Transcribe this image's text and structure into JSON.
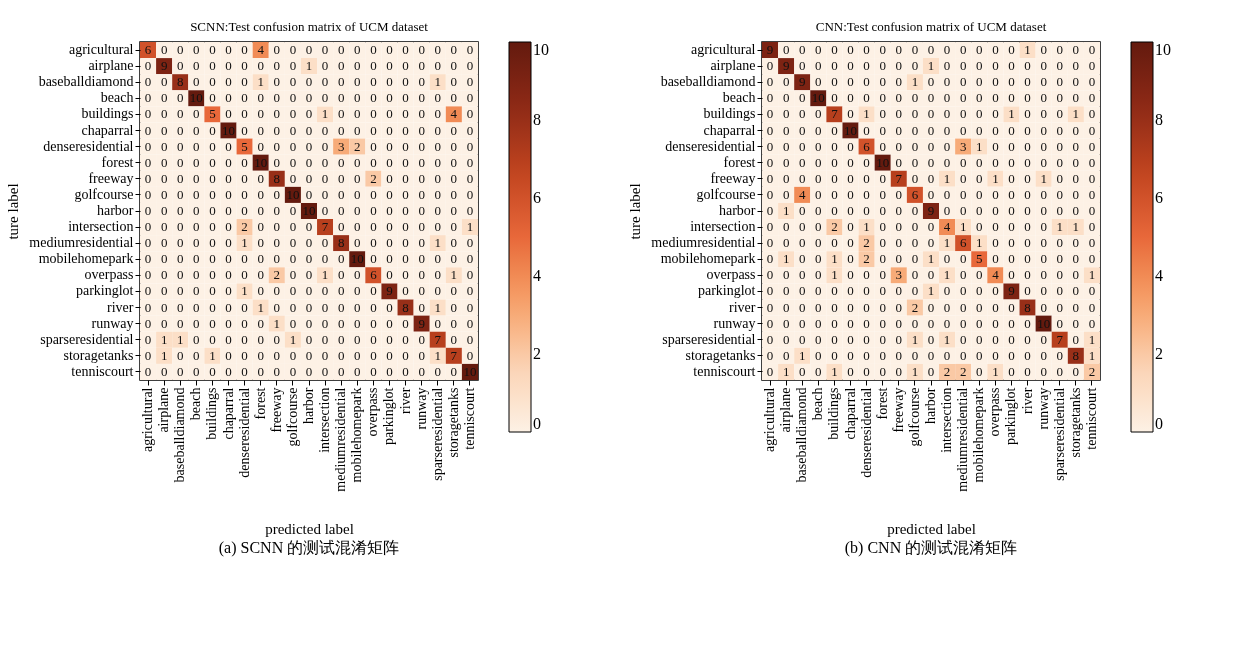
{
  "chart_data": [
    {
      "type": "heatmap",
      "title": "SCNN:Test confusion matrix of UCM dataset",
      "xlabel": "predicted label",
      "ylabel": "ture label",
      "data_labels": true,
      "grid": false,
      "clim": [
        0,
        10
      ],
      "cticks": [
        0,
        2,
        4,
        6,
        8,
        10
      ],
      "annotations": [
        "(a)  SCNN 的测试混淆矩阵"
      ],
      "categories": [
        "agricultural",
        "airplane",
        "baseballdiamond",
        "beach",
        "buildings",
        "chaparral",
        "denseresidential",
        "forest",
        "freeway",
        "golfcourse",
        "harbor",
        "intersection",
        "mediumresidential",
        "mobilehomepark",
        "overpass",
        "parkinglot",
        "river",
        "runway",
        "sparseresidential",
        "storagetanks",
        "tenniscourt"
      ],
      "y_categories": [
        "agricultural",
        "airplane",
        "baseballdiamond",
        "beach",
        "buildings",
        "chaparral",
        "denseresidential",
        "forest",
        "freeway",
        "golfcourse",
        "harbor",
        "intersection",
        "mediumresidential",
        "mobilehomepark",
        "overpass",
        "parkinglot",
        "river",
        "runway",
        "sparseresidential",
        "storagetanks",
        "tenniscourt"
      ],
      "cells": [
        [
          6,
          0,
          0,
          0,
          0,
          0,
          0,
          4,
          0,
          0,
          0,
          0,
          0,
          0,
          0,
          0,
          0,
          0,
          0,
          0,
          0
        ],
        [
          0,
          9,
          0,
          0,
          0,
          0,
          0,
          0,
          0,
          0,
          1,
          0,
          0,
          0,
          0,
          0,
          0,
          0,
          0,
          0,
          0
        ],
        [
          0,
          0,
          8,
          0,
          0,
          0,
          0,
          1,
          0,
          0,
          0,
          0,
          0,
          0,
          0,
          0,
          0,
          0,
          1,
          0,
          0
        ],
        [
          0,
          0,
          0,
          10,
          0,
          0,
          0,
          0,
          0,
          0,
          0,
          0,
          0,
          0,
          0,
          0,
          0,
          0,
          0,
          0,
          0
        ],
        [
          0,
          0,
          0,
          0,
          5,
          0,
          0,
          0,
          0,
          0,
          0,
          1,
          0,
          0,
          0,
          0,
          0,
          0,
          0,
          4,
          0
        ],
        [
          0,
          0,
          0,
          0,
          0,
          10,
          0,
          0,
          0,
          0,
          0,
          0,
          0,
          0,
          0,
          0,
          0,
          0,
          0,
          0,
          0
        ],
        [
          0,
          0,
          0,
          0,
          0,
          0,
          5,
          0,
          0,
          0,
          0,
          0,
          3,
          2,
          0,
          0,
          0,
          0,
          0,
          0,
          0
        ],
        [
          0,
          0,
          0,
          0,
          0,
          0,
          0,
          10,
          0,
          0,
          0,
          0,
          0,
          0,
          0,
          0,
          0,
          0,
          0,
          0,
          0
        ],
        [
          0,
          0,
          0,
          0,
          0,
          0,
          0,
          0,
          8,
          0,
          0,
          0,
          0,
          0,
          2,
          0,
          0,
          0,
          0,
          0,
          0
        ],
        [
          0,
          0,
          0,
          0,
          0,
          0,
          0,
          0,
          0,
          10,
          0,
          0,
          0,
          0,
          0,
          0,
          0,
          0,
          0,
          0,
          0
        ],
        [
          0,
          0,
          0,
          0,
          0,
          0,
          0,
          0,
          0,
          0,
          10,
          0,
          0,
          0,
          0,
          0,
          0,
          0,
          0,
          0,
          0
        ],
        [
          0,
          0,
          0,
          0,
          0,
          0,
          2,
          0,
          0,
          0,
          0,
          7,
          0,
          0,
          0,
          0,
          0,
          0,
          0,
          0,
          1
        ],
        [
          0,
          0,
          0,
          0,
          0,
          0,
          1,
          0,
          0,
          0,
          0,
          0,
          8,
          0,
          0,
          0,
          0,
          0,
          1,
          0,
          0
        ],
        [
          0,
          0,
          0,
          0,
          0,
          0,
          0,
          0,
          0,
          0,
          0,
          0,
          0,
          10,
          0,
          0,
          0,
          0,
          0,
          0,
          0
        ],
        [
          0,
          0,
          0,
          0,
          0,
          0,
          0,
          0,
          2,
          0,
          0,
          1,
          0,
          0,
          6,
          0,
          0,
          0,
          0,
          1,
          0
        ],
        [
          0,
          0,
          0,
          0,
          0,
          0,
          1,
          0,
          0,
          0,
          0,
          0,
          0,
          0,
          0,
          9,
          0,
          0,
          0,
          0,
          0
        ],
        [
          0,
          0,
          0,
          0,
          0,
          0,
          0,
          1,
          0,
          0,
          0,
          0,
          0,
          0,
          0,
          0,
          8,
          0,
          1,
          0,
          0
        ],
        [
          0,
          0,
          0,
          0,
          0,
          0,
          0,
          0,
          1,
          0,
          0,
          0,
          0,
          0,
          0,
          0,
          0,
          9,
          0,
          0,
          0
        ],
        [
          0,
          1,
          1,
          0,
          0,
          0,
          0,
          0,
          0,
          1,
          0,
          0,
          0,
          0,
          0,
          0,
          0,
          0,
          7,
          0,
          0
        ],
        [
          0,
          1,
          0,
          0,
          1,
          0,
          0,
          0,
          0,
          0,
          0,
          0,
          0,
          0,
          0,
          0,
          0,
          0,
          1,
          7,
          0
        ],
        [
          0,
          0,
          0,
          0,
          0,
          0,
          0,
          0,
          0,
          0,
          0,
          0,
          0,
          0,
          0,
          0,
          0,
          0,
          0,
          0,
          10
        ]
      ]
    },
    {
      "type": "heatmap",
      "title": "CNN:Test confusion matrix of UCM dataset",
      "xlabel": "predicted label",
      "ylabel": "ture label",
      "data_labels": true,
      "grid": false,
      "clim": [
        0,
        10
      ],
      "cticks": [
        0,
        2,
        4,
        6,
        8,
        10
      ],
      "annotations": [
        "(b)  CNN 的测试混淆矩阵"
      ],
      "categories": [
        "agricultural",
        "airplane",
        "baseballdiamond",
        "beach",
        "buildings",
        "chaparral",
        "denseresidential",
        "forest",
        "freeway",
        "golfcourse",
        "harbor",
        "intersection",
        "mediumresidential",
        "mobilehomepark",
        "overpass",
        "parkinglot",
        "river",
        "runway",
        "sparseresidential",
        "storagetanks",
        "tenniscourt"
      ],
      "y_categories": [
        "agricultural",
        "airplane",
        "baseballdiamond",
        "beach",
        "buildings",
        "chaparral",
        "denseresidential",
        "forest",
        "freeway",
        "golfcourse",
        "harbor",
        "intersection",
        "mediumresidential",
        "mobilehomepark",
        "overpass",
        "parkinglot",
        "river",
        "runway",
        "sparseresidential",
        "storagetanks",
        "tenniscourt"
      ],
      "cells": [
        [
          9,
          0,
          0,
          0,
          0,
          0,
          0,
          0,
          0,
          0,
          0,
          0,
          0,
          0,
          0,
          0,
          1,
          0,
          0,
          0,
          0
        ],
        [
          0,
          9,
          0,
          0,
          0,
          0,
          0,
          0,
          0,
          0,
          1,
          0,
          0,
          0,
          0,
          0,
          0,
          0,
          0,
          0,
          0
        ],
        [
          0,
          0,
          9,
          0,
          0,
          0,
          0,
          0,
          0,
          1,
          0,
          0,
          0,
          0,
          0,
          0,
          0,
          0,
          0,
          0,
          0
        ],
        [
          0,
          0,
          0,
          10,
          0,
          0,
          0,
          0,
          0,
          0,
          0,
          0,
          0,
          0,
          0,
          0,
          0,
          0,
          0,
          0,
          0
        ],
        [
          0,
          0,
          0,
          0,
          7,
          0,
          1,
          0,
          0,
          0,
          0,
          0,
          0,
          0,
          0,
          1,
          0,
          0,
          0,
          1,
          0
        ],
        [
          0,
          0,
          0,
          0,
          0,
          10,
          0,
          0,
          0,
          0,
          0,
          0,
          0,
          0,
          0,
          0,
          0,
          0,
          0,
          0,
          0
        ],
        [
          0,
          0,
          0,
          0,
          0,
          0,
          6,
          0,
          0,
          0,
          0,
          0,
          3,
          1,
          0,
          0,
          0,
          0,
          0,
          0,
          0
        ],
        [
          0,
          0,
          0,
          0,
          0,
          0,
          0,
          10,
          0,
          0,
          0,
          0,
          0,
          0,
          0,
          0,
          0,
          0,
          0,
          0,
          0
        ],
        [
          0,
          0,
          0,
          0,
          0,
          0,
          0,
          0,
          7,
          0,
          0,
          1,
          0,
          0,
          1,
          0,
          0,
          1,
          0,
          0,
          0
        ],
        [
          0,
          0,
          4,
          0,
          0,
          0,
          0,
          0,
          0,
          6,
          0,
          0,
          0,
          0,
          0,
          0,
          0,
          0,
          0,
          0,
          0
        ],
        [
          0,
          1,
          0,
          0,
          0,
          0,
          0,
          0,
          0,
          0,
          9,
          0,
          0,
          0,
          0,
          0,
          0,
          0,
          0,
          0,
          0
        ],
        [
          0,
          0,
          0,
          0,
          2,
          0,
          1,
          0,
          0,
          0,
          0,
          4,
          1,
          0,
          0,
          0,
          0,
          0,
          1,
          1,
          0
        ],
        [
          0,
          0,
          0,
          0,
          0,
          0,
          2,
          0,
          0,
          0,
          0,
          1,
          6,
          1,
          0,
          0,
          0,
          0,
          0,
          0,
          0
        ],
        [
          0,
          1,
          0,
          0,
          1,
          0,
          2,
          0,
          0,
          0,
          1,
          0,
          0,
          5,
          0,
          0,
          0,
          0,
          0,
          0,
          0
        ],
        [
          0,
          0,
          0,
          0,
          1,
          0,
          0,
          0,
          3,
          0,
          0,
          1,
          0,
          0,
          4,
          0,
          0,
          0,
          0,
          0,
          1
        ],
        [
          0,
          0,
          0,
          0,
          0,
          0,
          0,
          0,
          0,
          0,
          1,
          0,
          0,
          0,
          0,
          9,
          0,
          0,
          0,
          0,
          0
        ],
        [
          0,
          0,
          0,
          0,
          0,
          0,
          0,
          0,
          0,
          2,
          0,
          0,
          0,
          0,
          0,
          0,
          8,
          0,
          0,
          0,
          0
        ],
        [
          0,
          0,
          0,
          0,
          0,
          0,
          0,
          0,
          0,
          0,
          0,
          0,
          0,
          0,
          0,
          0,
          0,
          10,
          0,
          0,
          0
        ],
        [
          0,
          0,
          0,
          0,
          0,
          0,
          0,
          0,
          0,
          1,
          0,
          1,
          0,
          0,
          0,
          0,
          0,
          0,
          7,
          0,
          1
        ],
        [
          0,
          0,
          1,
          0,
          0,
          0,
          0,
          0,
          0,
          0,
          0,
          0,
          0,
          0,
          0,
          0,
          0,
          0,
          0,
          8,
          1
        ],
        [
          0,
          1,
          0,
          0,
          1,
          0,
          0,
          0,
          0,
          1,
          0,
          2,
          2,
          0,
          1,
          0,
          0,
          0,
          0,
          0,
          2
        ]
      ]
    }
  ]
}
